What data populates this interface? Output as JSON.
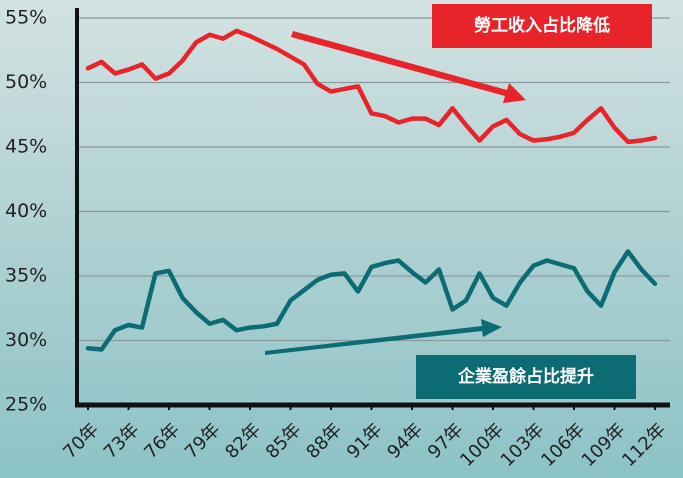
{
  "chart_data": {
    "type": "line",
    "x": [
      70,
      71,
      72,
      73,
      74,
      75,
      76,
      77,
      78,
      79,
      80,
      81,
      82,
      83,
      84,
      85,
      86,
      87,
      88,
      89,
      90,
      91,
      92,
      93,
      94,
      95,
      96,
      97,
      98,
      99,
      100,
      101,
      102,
      103,
      104,
      105,
      106,
      107,
      108,
      109,
      110,
      111,
      112
    ],
    "series": [
      {
        "color": "#e8232a",
        "values": [
          51.1,
          51.6,
          50.7,
          51.0,
          51.4,
          50.3,
          50.7,
          51.7,
          53.1,
          53.7,
          53.4,
          54.0,
          53.6,
          53.1,
          52.6,
          52.0,
          51.4,
          49.9,
          49.3,
          49.5,
          49.7,
          47.6,
          47.4,
          46.9,
          47.2,
          47.2,
          46.7,
          48.0,
          46.7,
          45.5,
          46.6,
          47.1,
          46.0,
          45.5,
          45.6,
          45.8,
          46.1,
          47.1,
          48.0,
          46.5,
          45.4,
          45.5,
          45.7
        ]
      },
      {
        "color": "#0d6b73",
        "values": [
          29.4,
          29.3,
          30.8,
          31.2,
          31.0,
          35.2,
          35.4,
          33.3,
          32.2,
          31.3,
          31.6,
          30.8,
          31.0,
          31.1,
          31.3,
          33.1,
          33.9,
          34.7,
          35.1,
          35.2,
          33.8,
          35.7,
          36.0,
          36.2,
          35.3,
          34.5,
          35.5,
          32.4,
          33.1,
          35.2,
          33.3,
          32.7,
          34.5,
          35.8,
          36.2,
          35.9,
          35.6,
          33.8,
          32.7,
          35.3,
          36.9,
          35.5,
          34.4
        ]
      }
    ],
    "xlim": [
      70,
      112
    ],
    "xticks": [
      {
        "value": 70,
        "label": "70年"
      },
      {
        "value": 73,
        "label": "73年"
      },
      {
        "value": 76,
        "label": "76年"
      },
      {
        "value": 79,
        "label": "79年"
      },
      {
        "value": 82,
        "label": "82年"
      },
      {
        "value": 85,
        "label": "85年"
      },
      {
        "value": 88,
        "label": "88年"
      },
      {
        "value": 91,
        "label": "91年"
      },
      {
        "value": 94,
        "label": "94年"
      },
      {
        "value": 97,
        "label": "97年"
      },
      {
        "value": 100,
        "label": "100年"
      },
      {
        "value": 103,
        "label": "103年"
      },
      {
        "value": 106,
        "label": "106年"
      },
      {
        "value": 109,
        "label": "109年"
      },
      {
        "value": 112,
        "label": "112年"
      }
    ],
    "ylim": [
      25,
      55
    ],
    "yticks": [
      {
        "value": 25,
        "label": "25%"
      },
      {
        "value": 30,
        "label": "30%"
      },
      {
        "value": 35,
        "label": "35%"
      },
      {
        "value": 40,
        "label": "40%"
      },
      {
        "value": 45,
        "label": "45%"
      },
      {
        "value": 50,
        "label": "50%"
      },
      {
        "value": 55,
        "label": "55%"
      }
    ],
    "grid": true,
    "annotations": [
      "勞工收入占比降低",
      "企業盈餘占比提升"
    ]
  }
}
